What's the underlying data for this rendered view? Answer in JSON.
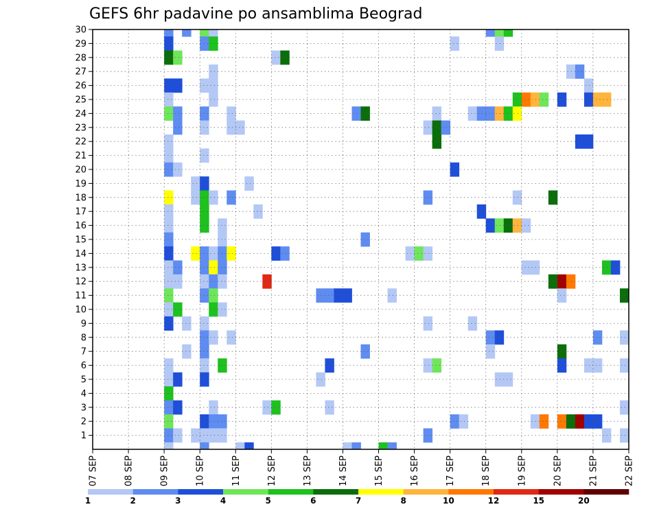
{
  "chart_data": {
    "type": "heatmap",
    "title": "GEFS 6hr padavine po ansamblima Beograd",
    "x_ticks": [
      "07 SEP",
      "08 SEP",
      "09 SEP",
      "10 SEP",
      "11 SEP",
      "12 SEP",
      "13 SEP",
      "14 SEP",
      "15 SEP",
      "16 SEP",
      "17 SEP",
      "18 SEP",
      "19 SEP",
      "20 SEP",
      "21 SEP",
      "22 SEP"
    ],
    "y_ticks": [
      "1",
      "2",
      "3",
      "4",
      "5",
      "6",
      "7",
      "8",
      "9",
      "10",
      "11",
      "12",
      "13",
      "14",
      "15",
      "16",
      "17",
      "18",
      "19",
      "20",
      "21",
      "22",
      "23",
      "24",
      "25",
      "26",
      "27",
      "28",
      "29",
      "30"
    ],
    "x_range_days": [
      0,
      15
    ],
    "y_range_members": [
      1,
      30
    ],
    "grid": true,
    "colorbar": {
      "placement": "bottom",
      "labels": [
        "1",
        "2",
        "3",
        "4",
        "5",
        "6",
        "7",
        "8",
        "10",
        "12",
        "15",
        "20"
      ],
      "colors": [
        "#b4c8f5",
        "#5f8cf0",
        "#1f4fd9",
        "#6fe65a",
        "#1ec11e",
        "#0b6e0b",
        "#ffff00",
        "#ffb43c",
        "#ff7800",
        "#e02814",
        "#a00000",
        "#600000"
      ]
    },
    "cells": [
      [
        2.0,
        30,
        2
      ],
      [
        2.5,
        30,
        2
      ],
      [
        3.0,
        30,
        4
      ],
      [
        3.25,
        30,
        1
      ],
      [
        2.0,
        29,
        3
      ],
      [
        3.0,
        29,
        2
      ],
      [
        3.25,
        29,
        5
      ],
      [
        2.0,
        28,
        6
      ],
      [
        2.25,
        28,
        4
      ],
      [
        5.0,
        28,
        1
      ],
      [
        5.25,
        28,
        6
      ],
      [
        3.25,
        27,
        1
      ],
      [
        2.0,
        26,
        3
      ],
      [
        2.25,
        26,
        3
      ],
      [
        3.0,
        26,
        1
      ],
      [
        3.25,
        26,
        1
      ],
      [
        2.0,
        25,
        1
      ],
      [
        3.25,
        25,
        1
      ],
      [
        2.0,
        24,
        4
      ],
      [
        2.25,
        24,
        2
      ],
      [
        3.0,
        24,
        2
      ],
      [
        3.75,
        24,
        1
      ],
      [
        7.25,
        24,
        2
      ],
      [
        7.5,
        24,
        6
      ],
      [
        9.5,
        24,
        1
      ],
      [
        2.25,
        23,
        2
      ],
      [
        3.0,
        23,
        1
      ],
      [
        3.75,
        23,
        1
      ],
      [
        4.0,
        23,
        1
      ],
      [
        9.25,
        23,
        1
      ],
      [
        9.5,
        23,
        6
      ],
      [
        9.75,
        23,
        2
      ],
      [
        2.0,
        22,
        1
      ],
      [
        9.5,
        22,
        6
      ],
      [
        2.0,
        21,
        1
      ],
      [
        3.0,
        21,
        1
      ],
      [
        2.0,
        20,
        2
      ],
      [
        2.25,
        20,
        1
      ],
      [
        10.0,
        20,
        3
      ],
      [
        2.75,
        19,
        1
      ],
      [
        3.0,
        19,
        3
      ],
      [
        4.25,
        19,
        1
      ],
      [
        2.0,
        18,
        7
      ],
      [
        2.75,
        18,
        1
      ],
      [
        3.0,
        18,
        5
      ],
      [
        3.25,
        18,
        1
      ],
      [
        3.75,
        18,
        2
      ],
      [
        9.25,
        18,
        2
      ],
      [
        2.0,
        17,
        1
      ],
      [
        3.0,
        17,
        5
      ],
      [
        4.5,
        17,
        1
      ],
      [
        2.0,
        16,
        1
      ],
      [
        3.0,
        16,
        5
      ],
      [
        3.5,
        16,
        1
      ],
      [
        2.0,
        15,
        2
      ],
      [
        3.5,
        15,
        1
      ],
      [
        7.5,
        15,
        2
      ],
      [
        2.0,
        14,
        3
      ],
      [
        2.75,
        14,
        7
      ],
      [
        3.0,
        14,
        2
      ],
      [
        3.25,
        14,
        1
      ],
      [
        3.5,
        14,
        2
      ],
      [
        3.75,
        14,
        7
      ],
      [
        5.0,
        14,
        3
      ],
      [
        5.25,
        14,
        2
      ],
      [
        8.75,
        14,
        1
      ],
      [
        9.0,
        14,
        4
      ],
      [
        9.25,
        14,
        1
      ],
      [
        2.0,
        13,
        1
      ],
      [
        2.25,
        13,
        2
      ],
      [
        3.0,
        13,
        2
      ],
      [
        3.25,
        13,
        7
      ],
      [
        3.5,
        13,
        2
      ],
      [
        2.0,
        12,
        1
      ],
      [
        2.25,
        12,
        1
      ],
      [
        3.0,
        12,
        1
      ],
      [
        3.25,
        12,
        2
      ],
      [
        3.5,
        12,
        1
      ],
      [
        4.75,
        12,
        10
      ],
      [
        2.0,
        11,
        4
      ],
      [
        3.0,
        11,
        2
      ],
      [
        3.25,
        11,
        4
      ],
      [
        6.25,
        11,
        2
      ],
      [
        6.5,
        11,
        2
      ],
      [
        6.75,
        11,
        3
      ],
      [
        7.0,
        11,
        3
      ],
      [
        8.25,
        11,
        1
      ],
      [
        2.0,
        10,
        1
      ],
      [
        2.25,
        10,
        5
      ],
      [
        3.25,
        10,
        5
      ],
      [
        3.5,
        10,
        1
      ],
      [
        2.0,
        9,
        3
      ],
      [
        2.5,
        9,
        1
      ],
      [
        3.0,
        9,
        1
      ],
      [
        9.25,
        9,
        1
      ],
      [
        10.5,
        9,
        1
      ],
      [
        3.0,
        8,
        2
      ],
      [
        3.25,
        8,
        1
      ],
      [
        3.75,
        8,
        1
      ],
      [
        11.0,
        8,
        2
      ],
      [
        11.25,
        8,
        3
      ],
      [
        2.5,
        7,
        1
      ],
      [
        3.0,
        7,
        2
      ],
      [
        7.5,
        7,
        2
      ],
      [
        11.0,
        7,
        1
      ],
      [
        2.0,
        6,
        1
      ],
      [
        3.0,
        6,
        1
      ],
      [
        3.5,
        6,
        5
      ],
      [
        6.5,
        6,
        3
      ],
      [
        9.25,
        6,
        1
      ],
      [
        9.5,
        6,
        4
      ],
      [
        2.0,
        5,
        1
      ],
      [
        2.25,
        5,
        3
      ],
      [
        3.0,
        5,
        3
      ],
      [
        6.25,
        5,
        1
      ],
      [
        11.25,
        5,
        1
      ],
      [
        11.5,
        5,
        1
      ],
      [
        2.0,
        4,
        5
      ],
      [
        2.0,
        3,
        2
      ],
      [
        2.25,
        3,
        3
      ],
      [
        3.25,
        3,
        1
      ],
      [
        4.75,
        3,
        1
      ],
      [
        5.0,
        3,
        5
      ],
      [
        6.5,
        3,
        1
      ],
      [
        2.0,
        2,
        4
      ],
      [
        3.0,
        2,
        3
      ],
      [
        3.25,
        2,
        2
      ],
      [
        3.5,
        2,
        2
      ],
      [
        10.0,
        2,
        2
      ],
      [
        10.25,
        2,
        1
      ],
      [
        2.0,
        1,
        2
      ],
      [
        2.25,
        1,
        1
      ],
      [
        2.75,
        1,
        1
      ],
      [
        3.0,
        1,
        1
      ],
      [
        3.25,
        1,
        1
      ],
      [
        3.5,
        1,
        1
      ],
      [
        9.25,
        1,
        2
      ],
      [
        2.0,
        0,
        1
      ],
      [
        3.0,
        0,
        2
      ],
      [
        4.0,
        0,
        1
      ],
      [
        4.25,
        0,
        3
      ],
      [
        7.0,
        0,
        1
      ],
      [
        7.25,
        0,
        2
      ],
      [
        8.0,
        0,
        5
      ],
      [
        8.25,
        0,
        2
      ],
      [
        11.0,
        30,
        2
      ],
      [
        11.25,
        30,
        4
      ],
      [
        11.5,
        30,
        5
      ],
      [
        11.25,
        29,
        1
      ],
      [
        10.0,
        29,
        1
      ],
      [
        13.25,
        27,
        1
      ],
      [
        13.5,
        27,
        2
      ],
      [
        13.75,
        26,
        1
      ],
      [
        11.75,
        25,
        5
      ],
      [
        12.0,
        25,
        9
      ],
      [
        12.25,
        25,
        8
      ],
      [
        12.5,
        25,
        4
      ],
      [
        13.0,
        25,
        3
      ],
      [
        13.75,
        25,
        3
      ],
      [
        14.0,
        25,
        8
      ],
      [
        14.25,
        25,
        8
      ],
      [
        10.5,
        24,
        1
      ],
      [
        10.75,
        24,
        2
      ],
      [
        11.0,
        24,
        2
      ],
      [
        11.25,
        24,
        8
      ],
      [
        11.5,
        24,
        5
      ],
      [
        11.75,
        24,
        7
      ],
      [
        13.5,
        22,
        3
      ],
      [
        13.75,
        22,
        3
      ],
      [
        12.75,
        18,
        6
      ],
      [
        11.75,
        18,
        1
      ],
      [
        10.75,
        17,
        3
      ],
      [
        11.0,
        16,
        3
      ],
      [
        11.25,
        16,
        4
      ],
      [
        11.5,
        16,
        6
      ],
      [
        11.75,
        16,
        8
      ],
      [
        12.0,
        16,
        1
      ],
      [
        12.0,
        13,
        1
      ],
      [
        12.25,
        13,
        1
      ],
      [
        14.25,
        13,
        5
      ],
      [
        14.5,
        13,
        3
      ],
      [
        12.75,
        12,
        6
      ],
      [
        13.0,
        12,
        11
      ],
      [
        13.25,
        12,
        9
      ],
      [
        13.0,
        11,
        1
      ],
      [
        14.75,
        11,
        6
      ],
      [
        13.0,
        7,
        6
      ],
      [
        13.0,
        6,
        3
      ],
      [
        13.75,
        6,
        1
      ],
      [
        14.0,
        6,
        1
      ],
      [
        14.75,
        6,
        1
      ],
      [
        14.0,
        8,
        2
      ],
      [
        14.75,
        8,
        1
      ],
      [
        12.25,
        2,
        1
      ],
      [
        12.5,
        2,
        9
      ],
      [
        13.0,
        2,
        9
      ],
      [
        13.25,
        2,
        6
      ],
      [
        13.5,
        2,
        11
      ],
      [
        13.75,
        2,
        3
      ],
      [
        14.0,
        2,
        3
      ],
      [
        14.75,
        3,
        1
      ],
      [
        14.25,
        1,
        1
      ],
      [
        14.75,
        1,
        1
      ]
    ]
  }
}
